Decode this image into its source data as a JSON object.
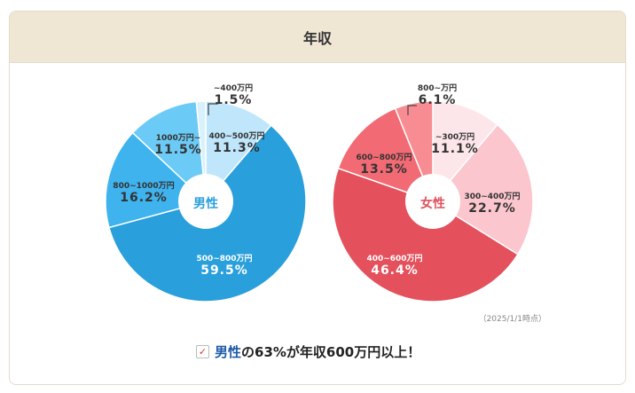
{
  "header": {
    "title": "年収"
  },
  "chart_data": [
    {
      "type": "pie",
      "center_label": "男性",
      "center_color": "#2a9fdc",
      "categories": [
        "400~500万円",
        "500~800万円",
        "800~1000万円",
        "1000万円~",
        "~400万円"
      ],
      "values": [
        11.3,
        59.5,
        16.2,
        11.5,
        1.5
      ],
      "value_labels": [
        "11.3%",
        "59.5%",
        "16.2%",
        "11.5%",
        "1.5%"
      ],
      "colors": [
        "#bfe6fb",
        "#299fdc",
        "#3fb3ed",
        "#6ccbf6",
        "#d9f1fc"
      ]
    },
    {
      "type": "pie",
      "center_label": "女性",
      "center_color": "#e0505c",
      "categories": [
        "~300万円",
        "300~400万円",
        "400~600万円",
        "600~800万円",
        "800~万円"
      ],
      "values": [
        11.1,
        22.7,
        46.4,
        13.5,
        6.1
      ],
      "value_labels": [
        "11.1%",
        "22.7%",
        "46.4%",
        "13.5%",
        "6.1%"
      ],
      "colors": [
        "#fde6ea",
        "#fcc6ce",
        "#e4505c",
        "#f26a74",
        "#f78d92"
      ]
    }
  ],
  "note": "（2025/1/1時点）",
  "summary": {
    "check": "✓",
    "highlight": "男性",
    "rest": "の63%が年収600万円以上！"
  }
}
